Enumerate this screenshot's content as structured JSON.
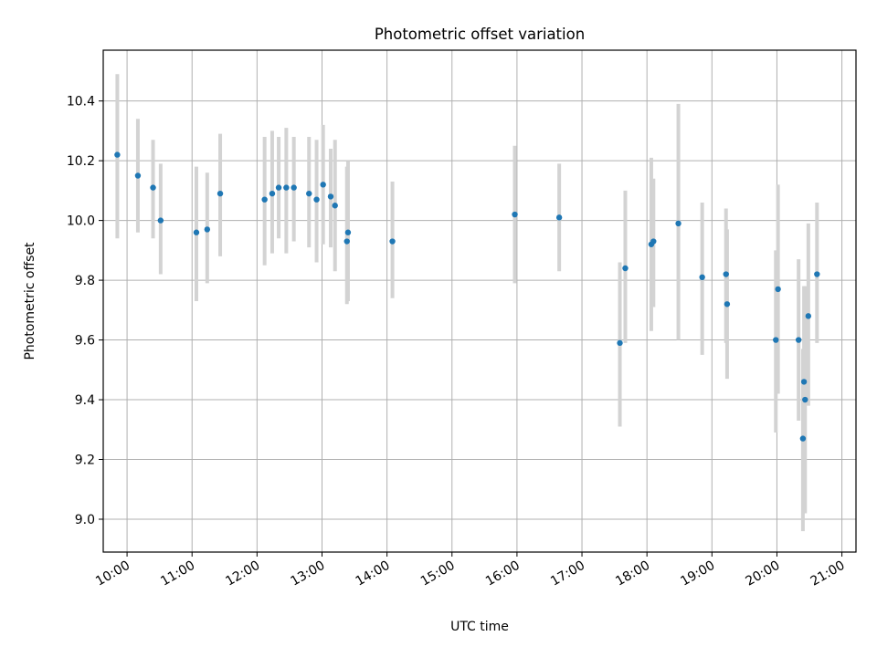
{
  "chart_data": {
    "type": "scatter",
    "title": "Photometric offset variation",
    "xlabel": "UTC time",
    "ylabel": "Photometric offset",
    "x_ticks": [
      "10:00",
      "11:00",
      "12:00",
      "13:00",
      "14:00",
      "15:00",
      "16:00",
      "17:00",
      "18:00",
      "19:00",
      "20:00",
      "21:00"
    ],
    "y_ticks": [
      "9.0",
      "9.2",
      "9.4",
      "9.6",
      "9.8",
      "10.0",
      "10.2",
      "10.4"
    ],
    "xlim": [
      "09:38",
      "21:13"
    ],
    "ylim": [
      8.89,
      10.57
    ],
    "grid": true,
    "colors": {
      "points": "#1f77b4",
      "errorbars": "#d3d3d3",
      "grid": "#b0b0b0"
    },
    "series": [
      {
        "points": [
          {
            "x": "09:51",
            "y": 10.22,
            "ylow": 9.94,
            "yhigh": 10.49
          },
          {
            "x": "10:10",
            "y": 10.15,
            "ylow": 9.96,
            "yhigh": 10.34
          },
          {
            "x": "10:24",
            "y": 10.11,
            "ylow": 9.94,
            "yhigh": 10.27
          },
          {
            "x": "10:31",
            "y": 10.0,
            "ylow": 9.82,
            "yhigh": 10.19
          },
          {
            "x": "11:04",
            "y": 9.96,
            "ylow": 9.73,
            "yhigh": 10.18
          },
          {
            "x": "11:14",
            "y": 9.97,
            "ylow": 9.79,
            "yhigh": 10.16
          },
          {
            "x": "11:26",
            "y": 10.09,
            "ylow": 9.88,
            "yhigh": 10.29
          },
          {
            "x": "12:07",
            "y": 10.07,
            "ylow": 9.85,
            "yhigh": 10.28
          },
          {
            "x": "12:14",
            "y": 10.09,
            "ylow": 9.89,
            "yhigh": 10.3
          },
          {
            "x": "12:20",
            "y": 10.11,
            "ylow": 9.94,
            "yhigh": 10.28
          },
          {
            "x": "12:27",
            "y": 10.11,
            "ylow": 9.89,
            "yhigh": 10.31
          },
          {
            "x": "12:34",
            "y": 10.11,
            "ylow": 9.93,
            "yhigh": 10.28
          },
          {
            "x": "12:48",
            "y": 10.09,
            "ylow": 9.91,
            "yhigh": 10.28
          },
          {
            "x": "12:55",
            "y": 10.07,
            "ylow": 9.86,
            "yhigh": 10.27
          },
          {
            "x": "13:01",
            "y": 10.12,
            "ylow": 9.92,
            "yhigh": 10.32
          },
          {
            "x": "13:08",
            "y": 10.08,
            "ylow": 9.91,
            "yhigh": 10.24
          },
          {
            "x": "13:12",
            "y": 10.05,
            "ylow": 9.83,
            "yhigh": 10.27
          },
          {
            "x": "13:23",
            "y": 9.93,
            "ylow": 9.72,
            "yhigh": 10.18
          },
          {
            "x": "13:24",
            "y": 9.96,
            "ylow": 9.73,
            "yhigh": 10.2
          },
          {
            "x": "14:05",
            "y": 9.93,
            "ylow": 9.74,
            "yhigh": 10.13
          },
          {
            "x": "15:58",
            "y": 10.02,
            "ylow": 9.79,
            "yhigh": 10.25
          },
          {
            "x": "16:39",
            "y": 10.01,
            "ylow": 9.83,
            "yhigh": 10.19
          },
          {
            "x": "17:35",
            "y": 9.59,
            "ylow": 9.31,
            "yhigh": 9.86
          },
          {
            "x": "17:40",
            "y": 9.84,
            "ylow": 9.59,
            "yhigh": 10.1
          },
          {
            "x": "18:04",
            "y": 9.92,
            "ylow": 9.63,
            "yhigh": 10.21
          },
          {
            "x": "18:06",
            "y": 9.93,
            "ylow": 9.71,
            "yhigh": 10.14
          },
          {
            "x": "18:29",
            "y": 9.99,
            "ylow": 9.6,
            "yhigh": 10.39
          },
          {
            "x": "18:51",
            "y": 9.81,
            "ylow": 9.55,
            "yhigh": 10.06
          },
          {
            "x": "19:13",
            "y": 9.82,
            "ylow": 9.59,
            "yhigh": 10.04
          },
          {
            "x": "19:14",
            "y": 9.72,
            "ylow": 9.47,
            "yhigh": 9.97
          },
          {
            "x": "19:59",
            "y": 9.6,
            "ylow": 9.29,
            "yhigh": 9.9
          },
          {
            "x": "20:01",
            "y": 9.77,
            "ylow": 9.42,
            "yhigh": 10.12
          },
          {
            "x": "20:20",
            "y": 9.6,
            "ylow": 9.33,
            "yhigh": 9.87
          },
          {
            "x": "20:24",
            "y": 9.27,
            "ylow": 8.96,
            "yhigh": 9.57
          },
          {
            "x": "20:25",
            "y": 9.46,
            "ylow": 9.06,
            "yhigh": 9.78
          },
          {
            "x": "20:26",
            "y": 9.4,
            "ylow": 9.02,
            "yhigh": 9.78
          },
          {
            "x": "20:29",
            "y": 9.68,
            "ylow": 9.38,
            "yhigh": 9.99
          },
          {
            "x": "20:37",
            "y": 9.82,
            "ylow": 9.59,
            "yhigh": 10.06
          }
        ]
      }
    ]
  }
}
